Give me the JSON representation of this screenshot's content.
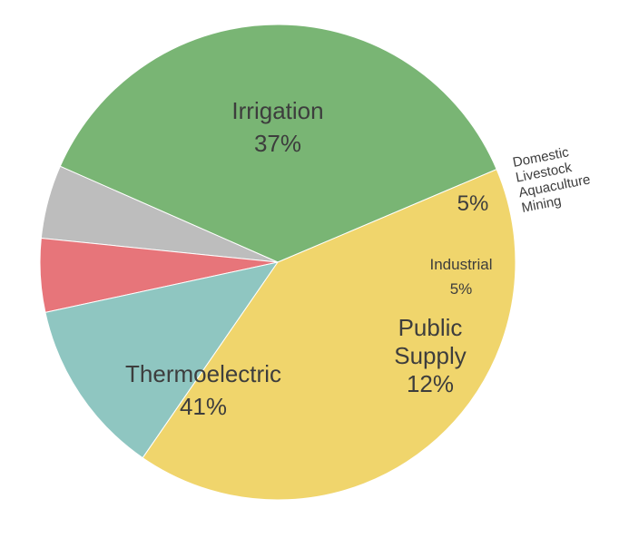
{
  "chart_data": {
    "type": "pie",
    "title": "",
    "slices": [
      {
        "lines": [
          "Irrigation",
          "37%"
        ],
        "value": 37,
        "color": "#79b574"
      },
      {
        "lines": [
          "Domestic",
          "Livestock",
          "Aquaculture",
          "Mining"
        ],
        "pct_label": "5%",
        "value": 5,
        "color": "#bdbdbd"
      },
      {
        "lines": [
          "Industrial",
          "5%"
        ],
        "value": 5,
        "color": "#e7757a"
      },
      {
        "lines": [
          "Public",
          "Supply",
          "12%"
        ],
        "value": 12,
        "color": "#8fc6c1"
      },
      {
        "lines": [
          "Thermoelectric",
          "41%"
        ],
        "value": 41,
        "color": "#f0d56c"
      }
    ]
  }
}
